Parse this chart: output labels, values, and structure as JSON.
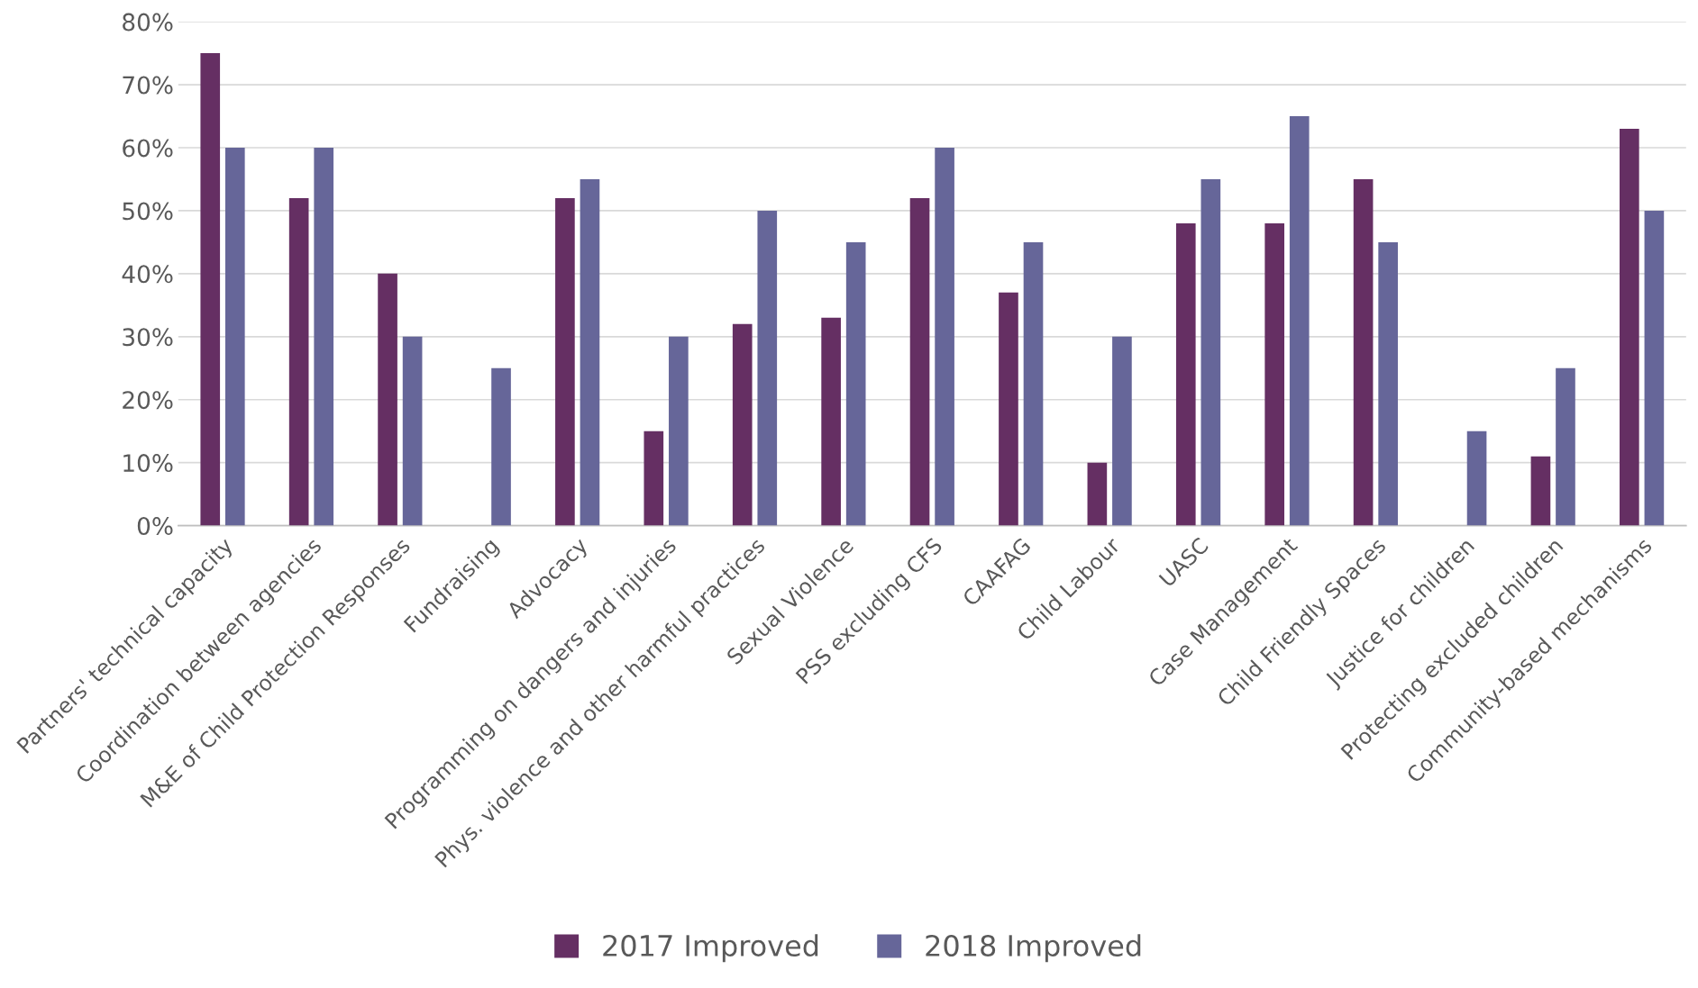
{
  "chart_data": {
    "type": "bar",
    "categories": [
      "Partners' technical capacity",
      "Coordination between agencies",
      "M&E of Child Protection Responses",
      "Fundraising",
      "Advocacy",
      "Programming on dangers and injuries",
      "Phys. violence and other harmful practices",
      "Sexual Violence",
      "PSS excluding CFS",
      "CAAFAG",
      "Child Labour",
      "UASC",
      "Case Management",
      "Child Friendly Spaces",
      "Justice for children",
      "Protecting excluded children",
      "Community-based mechanisms"
    ],
    "series": [
      {
        "name": "2017 Improved",
        "color": "#652f63",
        "values": [
          75,
          52,
          40,
          null,
          52,
          15,
          32,
          33,
          52,
          37,
          10,
          48,
          48,
          55,
          null,
          11,
          63
        ]
      },
      {
        "name": "2018 Improved",
        "color": "#666699",
        "values": [
          60,
          60,
          30,
          25,
          55,
          30,
          50,
          45,
          60,
          45,
          30,
          55,
          65,
          45,
          15,
          25,
          50
        ]
      }
    ],
    "ylim": [
      0,
      80
    ],
    "yticks": [
      {
        "value": 0,
        "label": "0%"
      },
      {
        "value": 10,
        "label": "10%"
      },
      {
        "value": 20,
        "label": "20%"
      },
      {
        "value": 30,
        "label": "30%"
      },
      {
        "value": 40,
        "label": "40%"
      },
      {
        "value": 50,
        "label": "50%"
      },
      {
        "value": 60,
        "label": "60%"
      },
      {
        "value": 70,
        "label": "70%"
      },
      {
        "value": 80,
        "label": "80%"
      }
    ],
    "grid": "y",
    "legend": "bottom"
  }
}
